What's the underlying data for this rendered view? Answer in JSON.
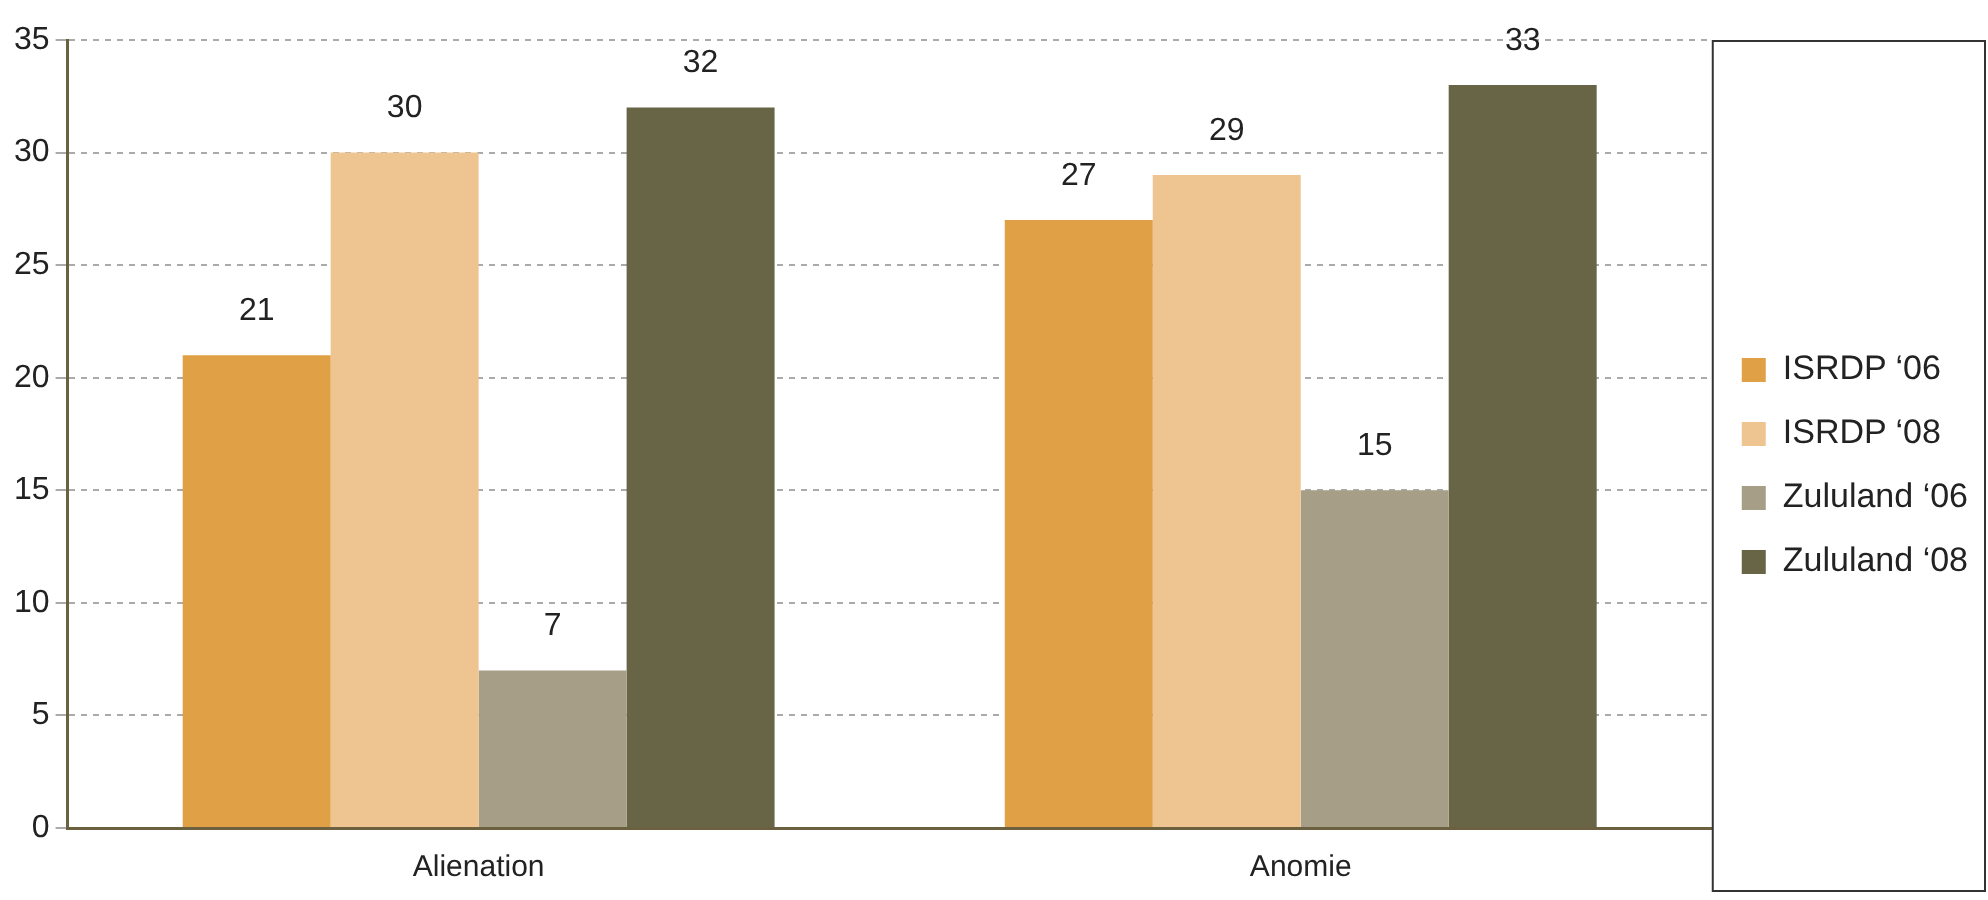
{
  "chart_data": {
    "type": "bar",
    "categories": [
      "Alienation",
      "Anomie"
    ],
    "series": [
      {
        "name": "ISRDP ‘06",
        "color": "#e0a045",
        "values": [
          21,
          27
        ]
      },
      {
        "name": "ISRDP ‘08",
        "color": "#eec590",
        "values": [
          30,
          29
        ]
      },
      {
        "name": "Zululand ‘06",
        "color": "#a69e86",
        "values": [
          7,
          15
        ]
      },
      {
        "name": "Zululand ‘08",
        "color": "#686446",
        "values": [
          32,
          33
        ]
      }
    ],
    "ylim": [
      0,
      35
    ],
    "yticks": [
      0,
      5,
      10,
      15,
      20,
      25,
      30,
      35
    ],
    "grid": "y",
    "legend": "right",
    "data_labels": true
  }
}
